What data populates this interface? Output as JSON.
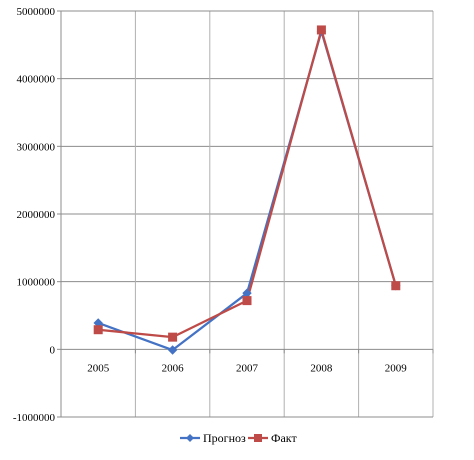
{
  "chart_data": {
    "type": "line",
    "categories": [
      "2005",
      "2006",
      "2007",
      "2008",
      "2009"
    ],
    "ylim": [
      -1000000,
      5000000
    ],
    "yticks": [
      -1000000,
      0,
      1000000,
      2000000,
      3000000,
      4000000,
      5000000
    ],
    "ytick_labels": [
      "-1000000",
      "0",
      "1000000",
      "2000000",
      "3000000",
      "4000000",
      "5000000"
    ],
    "grid": "vertical and horizontal",
    "legend_position": "bottom",
    "series": [
      {
        "name": "Прогноз",
        "color": "#4472C4",
        "marker": "diamond",
        "values": [
          390000,
          -10000,
          830000,
          4700000,
          940000
        ]
      },
      {
        "name": "Факт",
        "color": "#BE4B48",
        "marker": "square",
        "values": [
          290000,
          180000,
          720000,
          4720000,
          940000
        ]
      }
    ]
  }
}
